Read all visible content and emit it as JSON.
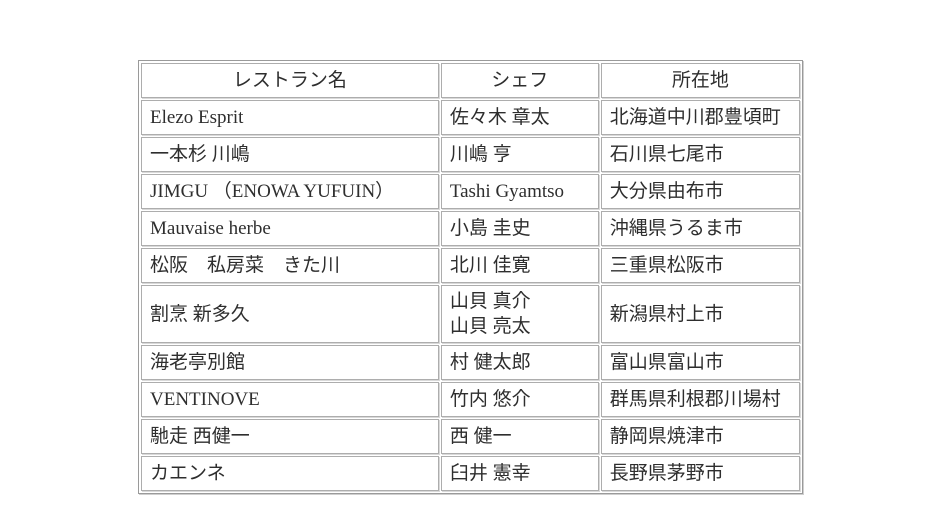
{
  "chart_data": {
    "type": "table",
    "columns": [
      "レストラン名",
      "シェフ",
      "所在地"
    ],
    "rows": [
      [
        "Elezo Esprit",
        "佐々木 章太",
        "北海道中川郡豊頃町"
      ],
      [
        "一本杉 川嶋",
        "川嶋 亨",
        "石川県七尾市"
      ],
      [
        "JIMGU （ENOWA YUFUIN）",
        "Tashi Gyamtso",
        "大分県由布市"
      ],
      [
        "Mauvaise herbe",
        "小島 圭史",
        "沖縄県うるま市"
      ],
      [
        "松阪　私房菜　きた川",
        "北川 佳寛",
        "三重県松阪市"
      ],
      [
        "割烹 新多久",
        "山貝 真介\n山貝 亮太",
        "新潟県村上市"
      ],
      [
        "海老亭別館",
        "村 健太郎",
        "富山県富山市"
      ],
      [
        "VENTINOVE",
        "竹内 悠介",
        "群馬県利根郡川場村"
      ],
      [
        "馳走 西健一",
        "西 健一",
        "静岡県焼津市"
      ],
      [
        "カエンネ",
        "臼井 憲幸",
        "長野県茅野市"
      ]
    ],
    "title": "",
    "layout": {
      "grid": "all-cell-borders",
      "header_align": "center",
      "body_align": "left"
    }
  },
  "style": {
    "outer_border_color": "#9a9a9a",
    "cell_border_color": "#adadad",
    "text_color": "#2e2e2e",
    "background_color": "#ffffff"
  }
}
